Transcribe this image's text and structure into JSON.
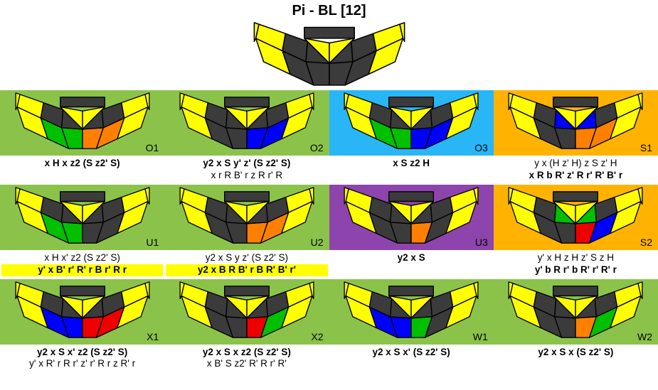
{
  "title": "Pi - BL [12]",
  "colors": {
    "gray": "#3b3b3b",
    "stroke": "#000000",
    "yellow": "#ffff00",
    "green": "#00c000",
    "orange": "#ff8000",
    "blue": "#0000ff",
    "red": "#ee0000",
    "bg_green": "#8bc34a",
    "bg_blue": "#29b6f6",
    "bg_orange": "#ffb300",
    "bg_purple": "#8e44ad",
    "bg_white": "#ffffff"
  },
  "header": {
    "faces": {
      "L1": "yellow",
      "L2": "gray",
      "L3": "gray",
      "R1": "gray",
      "R2": "gray",
      "R3": "yellow",
      "TL1": "yellow",
      "TL2": "gray",
      "TL3": "gray",
      "TR1": "gray",
      "TR2": "gray",
      "TR3": "yellow",
      "CL": "yellow",
      "CR": "yellow"
    }
  },
  "cells": [
    {
      "id": "O1",
      "bg": "bg_green",
      "faces": {
        "L1": "yellow",
        "L2": "green",
        "L3": "green",
        "R1": "orange",
        "R2": "orange",
        "R3": "yellow",
        "TL1": "yellow",
        "TL2": "gray",
        "TL3": "gray",
        "TR1": "gray",
        "TR2": "gray",
        "TR3": "yellow",
        "CL": "yellow",
        "CR": "yellow"
      },
      "algs": [
        {
          "text": "x H x z2 (S z2' S)",
          "bold": true
        }
      ]
    },
    {
      "id": "O2",
      "bg": "bg_green",
      "faces": {
        "L1": "yellow",
        "L2": "gray",
        "L3": "gray",
        "R1": "blue",
        "R2": "blue",
        "R3": "yellow",
        "TL1": "yellow",
        "TL2": "gray",
        "TL3": "gray",
        "TR1": "gray",
        "TR2": "gray",
        "TR3": "yellow",
        "CL": "yellow",
        "CR": "yellow"
      },
      "algs": [
        {
          "text": "y2 x S y' z' (S z2' S)",
          "bold": true
        },
        {
          "text": "x r R B' r z R r' R"
        }
      ]
    },
    {
      "id": "O3",
      "bg": "bg_blue",
      "faces": {
        "L1": "yellow",
        "L2": "green",
        "L3": "green",
        "R1": "blue",
        "R2": "blue",
        "R3": "yellow",
        "TL1": "yellow",
        "TL2": "gray",
        "TL3": "gray",
        "TR1": "gray",
        "TR2": "gray",
        "TR3": "yellow",
        "CL": "yellow",
        "CR": "yellow"
      },
      "algs": [
        {
          "text": "x S z2 H",
          "bold": true
        }
      ]
    },
    {
      "id": "S1",
      "bg": "bg_orange",
      "faces": {
        "L1": "yellow",
        "L2": "gray",
        "L3": "gray",
        "R1": "orange",
        "R2": "orange",
        "R3": "yellow",
        "TL1": "yellow",
        "TL2": "gray",
        "TL3": "blue",
        "TR1": "blue",
        "TR2": "gray",
        "TR3": "yellow",
        "CL": "yellow",
        "CR": "yellow"
      },
      "algs": [
        {
          "text": "y x (H z' H) z S z' H"
        },
        {
          "text": "x R b R' z' R r' R' B' r",
          "bold": true
        }
      ]
    },
    {
      "id": "U1",
      "bg": "bg_green",
      "faces": {
        "L1": "yellow",
        "L2": "green",
        "L3": "green",
        "R1": "gray",
        "R2": "gray",
        "R3": "yellow",
        "TL1": "yellow",
        "TL2": "gray",
        "TL3": "gray",
        "TR1": "gray",
        "TR2": "gray",
        "TR3": "yellow",
        "CL": "yellow",
        "CR": "yellow"
      },
      "algs": [
        {
          "text": "x H x' z2 (S z2' S)"
        },
        {
          "text": "y' x B' r' R' r B r' R r",
          "bold": true,
          "hl": true
        }
      ]
    },
    {
      "id": "U2",
      "bg": "bg_green",
      "faces": {
        "L1": "yellow",
        "L2": "gray",
        "L3": "gray",
        "R1": "orange",
        "R2": "orange",
        "R3": "yellow",
        "TL1": "yellow",
        "TL2": "gray",
        "TL3": "gray",
        "TR1": "gray",
        "TR2": "gray",
        "TR3": "yellow",
        "CL": "yellow",
        "CR": "yellow"
      },
      "algs": [
        {
          "text": "y2 x S y z' (S z2' S)"
        },
        {
          "text": "y2 x B R B' r B R' B' r'",
          "bold": true,
          "hl": true
        }
      ]
    },
    {
      "id": "U3",
      "bg": "bg_purple",
      "faces": {
        "L1": "yellow",
        "L2": "gray",
        "L3": "gray",
        "R1": "orange",
        "R2": "gray",
        "R3": "yellow",
        "TL1": "yellow",
        "TL2": "gray",
        "TL3": "gray",
        "TR1": "gray",
        "TR2": "gray",
        "TR3": "yellow",
        "CL": "yellow",
        "CR": "yellow"
      },
      "algs": [
        {
          "text": "y2 x S",
          "bold": true
        }
      ]
    },
    {
      "id": "S2",
      "bg": "bg_orange",
      "faces": {
        "L1": "yellow",
        "L2": "gray",
        "L3": "gray",
        "R1": "red",
        "R2": "blue",
        "R3": "yellow",
        "TL1": "yellow",
        "TL2": "gray",
        "TL3": "green",
        "TR1": "green",
        "TR2": "gray",
        "TR3": "yellow",
        "CL": "yellow",
        "CR": "yellow"
      },
      "algs": [
        {
          "text": "y' x H z H z' S z H"
        },
        {
          "text": "y' b R r' b R' r' R' r",
          "bold": true
        }
      ]
    },
    {
      "id": "X1",
      "bg": "bg_green",
      "faces": {
        "L1": "yellow",
        "L2": "blue",
        "L3": "blue",
        "R1": "red",
        "R2": "red",
        "R3": "yellow",
        "TL1": "yellow",
        "TL2": "gray",
        "TL3": "gray",
        "TR1": "gray",
        "TR2": "gray",
        "TR3": "yellow",
        "CL": "yellow",
        "CR": "yellow"
      },
      "algs": [
        {
          "text": "y2 x S x' z2 (S z2' S)",
          "bold": true
        },
        {
          "text": "y' x R' r R r' z' r' R r z R' r"
        }
      ]
    },
    {
      "id": "X2",
      "bg": "bg_green",
      "faces": {
        "L1": "yellow",
        "L2": "gray",
        "L3": "gray",
        "R1": "red",
        "R2": "green",
        "R3": "yellow",
        "TL1": "yellow",
        "TL2": "gray",
        "TL3": "gray",
        "TR1": "gray",
        "TR2": "gray",
        "TR3": "yellow",
        "CL": "yellow",
        "CR": "yellow"
      },
      "algs": [
        {
          "text": "y2 x S x z2 (S z2' S)",
          "bold": true
        },
        {
          "text": "x B' S z2' R' R r' R'"
        }
      ]
    },
    {
      "id": "W1",
      "bg": "bg_green",
      "faces": {
        "L1": "yellow",
        "L2": "blue",
        "L3": "blue",
        "R1": "green",
        "R2": "gray",
        "R3": "yellow",
        "TL1": "yellow",
        "TL2": "gray",
        "TL3": "gray",
        "TR1": "gray",
        "TR2": "gray",
        "TR3": "yellow",
        "CL": "yellow",
        "CR": "yellow"
      },
      "algs": [
        {
          "text": "y2 x S x' (S z2' S)",
          "bold": true
        }
      ]
    },
    {
      "id": "W2",
      "bg": "bg_green",
      "faces": {
        "L1": "yellow",
        "L2": "gray",
        "L3": "gray",
        "R1": "orange",
        "R2": "green",
        "R3": "yellow",
        "TL1": "yellow",
        "TL2": "gray",
        "TL3": "gray",
        "TR1": "gray",
        "TR2": "gray",
        "TR3": "yellow",
        "CL": "yellow",
        "CR": "yellow"
      },
      "algs": [
        {
          "text": "y2 x S x (S z2' S)",
          "bold": true
        }
      ]
    }
  ]
}
